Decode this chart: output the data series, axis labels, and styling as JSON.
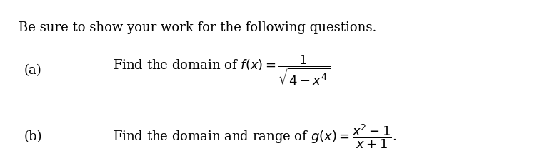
{
  "background_color": "#ffffff",
  "header": "Be sure to show your work for the following questions.",
  "part_a_label": "(a)",
  "part_a_text": "Find the domain of $f(x) = \\dfrac{1}{\\sqrt{4 - x^4}}$",
  "part_b_label": "(b)",
  "part_b_text": "Find the domain and range of $g(x) = \\dfrac{x^2 - 1}{x + 1}$.",
  "header_fontsize": 13,
  "label_fontsize": 13,
  "text_fontsize": 13,
  "font_family": "serif"
}
